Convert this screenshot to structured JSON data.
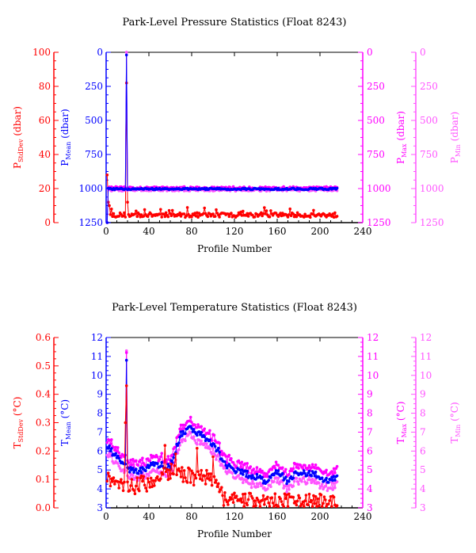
{
  "chart_data": [
    {
      "type": "line",
      "title": "Park-Level Pressure Statistics (Float 8243)",
      "xlabel": "Profile Number",
      "xlim": [
        0,
        240
      ],
      "xticks": [
        "0",
        "40",
        "80",
        "120",
        "160",
        "200",
        "240"
      ],
      "colors": {
        "stddev": "#ff0000",
        "mean": "#0000ff",
        "max": "#ff00ff",
        "min": "#ff55ff"
      },
      "axes": {
        "stddev": {
          "label_main": "P",
          "label_sub": "StdDev",
          "label_unit": " (dbar)",
          "ylim": [
            0,
            100
          ],
          "ticks": [
            "0",
            "20",
            "40",
            "60",
            "80",
            "100"
          ]
        },
        "mean": {
          "label_main": "P",
          "label_sub": "Mean",
          "label_unit": " (dbar)",
          "ylim": [
            1250,
            0
          ],
          "ticks": [
            "1250",
            "1000",
            "750",
            "500",
            "250",
            "0"
          ]
        },
        "max": {
          "label_main": "P",
          "label_sub": "Max",
          "label_unit": " (dbar)",
          "ylim": [
            1250,
            0
          ],
          "ticks": [
            "1250",
            "1000",
            "750",
            "500",
            "250",
            "0"
          ]
        },
        "min": {
          "label_main": "P",
          "label_sub": "Min",
          "label_unit": " (dbar)",
          "ylim": [
            1250,
            0
          ],
          "ticks": [
            "1250",
            "1000",
            "750",
            "500",
            "250",
            "0"
          ]
        }
      },
      "series": [
        {
          "key": "stddev",
          "axis": "stddev",
          "base": 4.5,
          "amp": 1.4,
          "spikes": [
            [
              1,
              28
            ],
            [
              2,
              12
            ],
            [
              3,
              10
            ],
            [
              5,
              8
            ],
            [
              19,
              82
            ],
            [
              20,
              12
            ]
          ],
          "n": 216
        },
        {
          "key": "max",
          "axis": "max",
          "base": 995,
          "amp": 9,
          "spikes": [
            [
              1,
              1250
            ],
            [
              19,
              0
            ]
          ],
          "n": 216
        },
        {
          "key": "min",
          "axis": "min",
          "base": 1010,
          "amp": 9,
          "spikes": [
            [
              1,
              1250
            ],
            [
              19,
              0
            ]
          ],
          "n": 216
        },
        {
          "key": "mean",
          "axis": "mean",
          "base": 1003,
          "amp": 6,
          "spikes": [
            [
              1,
              1250
            ],
            [
              19,
              20
            ]
          ],
          "n": 216
        }
      ]
    },
    {
      "type": "line",
      "title": "Park-Level Temperature Statistics (Float 8243)",
      "xlabel": "Profile Number",
      "xlim": [
        0,
        240
      ],
      "xticks": [
        "0",
        "40",
        "80",
        "120",
        "160",
        "200",
        "240"
      ],
      "colors": {
        "stddev": "#ff0000",
        "mean": "#0000ff",
        "max": "#ff00ff",
        "min": "#ff55ff"
      },
      "axes": {
        "stddev": {
          "label_main": "T",
          "label_sub": "StdDev",
          "label_unit": " (°C)",
          "ylim": [
            0,
            0.6
          ],
          "ticks": [
            "0.0",
            "0.1",
            "0.2",
            "0.3",
            "0.4",
            "0.5",
            "0.6"
          ]
        },
        "mean": {
          "label_main": "T",
          "label_sub": "Mean",
          "label_unit": " (°C)",
          "ylim": [
            3,
            12
          ],
          "ticks": [
            "3",
            "4",
            "5",
            "6",
            "7",
            "8",
            "9",
            "10",
            "11",
            "12"
          ]
        },
        "max": {
          "label_main": "T",
          "label_sub": "Max",
          "label_unit": " (°C)",
          "ylim": [
            3,
            12
          ],
          "ticks": [
            "3",
            "4",
            "5",
            "6",
            "7",
            "8",
            "9",
            "10",
            "11",
            "12"
          ]
        },
        "min": {
          "label_main": "T",
          "label_sub": "Min",
          "label_unit": " (°C)",
          "ylim": [
            3,
            12
          ],
          "ticks": [
            "3",
            "4",
            "5",
            "6",
            "7",
            "8",
            "9",
            "10",
            "11",
            "12"
          ]
        }
      },
      "mean_profile": [
        [
          0,
          6.3
        ],
        [
          5,
          6.0
        ],
        [
          10,
          5.7
        ],
        [
          18,
          5.2
        ],
        [
          20,
          5.0
        ],
        [
          30,
          4.9
        ],
        [
          40,
          5.2
        ],
        [
          50,
          5.3
        ],
        [
          60,
          5.2
        ],
        [
          70,
          6.9
        ],
        [
          80,
          7.2
        ],
        [
          90,
          6.8
        ],
        [
          100,
          6.4
        ],
        [
          105,
          6.0
        ],
        [
          110,
          5.3
        ],
        [
          120,
          5.0
        ],
        [
          130,
          4.8
        ],
        [
          145,
          4.6
        ],
        [
          150,
          4.3
        ],
        [
          160,
          4.9
        ],
        [
          170,
          4.4
        ],
        [
          180,
          4.9
        ],
        [
          190,
          4.8
        ],
        [
          200,
          4.7
        ],
        [
          205,
          4.4
        ],
        [
          216,
          4.6
        ]
      ],
      "stddev_profile": [
        [
          0,
          0.1
        ],
        [
          10,
          0.07
        ],
        [
          20,
          0.07
        ],
        [
          30,
          0.08
        ],
        [
          50,
          0.1
        ],
        [
          60,
          0.13
        ],
        [
          70,
          0.12
        ],
        [
          80,
          0.11
        ],
        [
          100,
          0.1
        ],
        [
          110,
          0.03
        ],
        [
          120,
          0.03
        ],
        [
          150,
          0.02
        ],
        [
          216,
          0.02
        ]
      ],
      "spikes": {
        "stddev": [
          [
            19,
            0.43
          ],
          [
            18,
            0.3
          ],
          [
            55,
            0.22
          ],
          [
            65,
            0.19
          ],
          [
            85,
            0.21
          ],
          [
            100,
            0.18
          ]
        ],
        "max": [
          [
            19,
            11.2
          ]
        ],
        "min": [
          [
            19,
            11.3
          ]
        ],
        "mean": [
          [
            19,
            10.8
          ]
        ]
      }
    }
  ]
}
